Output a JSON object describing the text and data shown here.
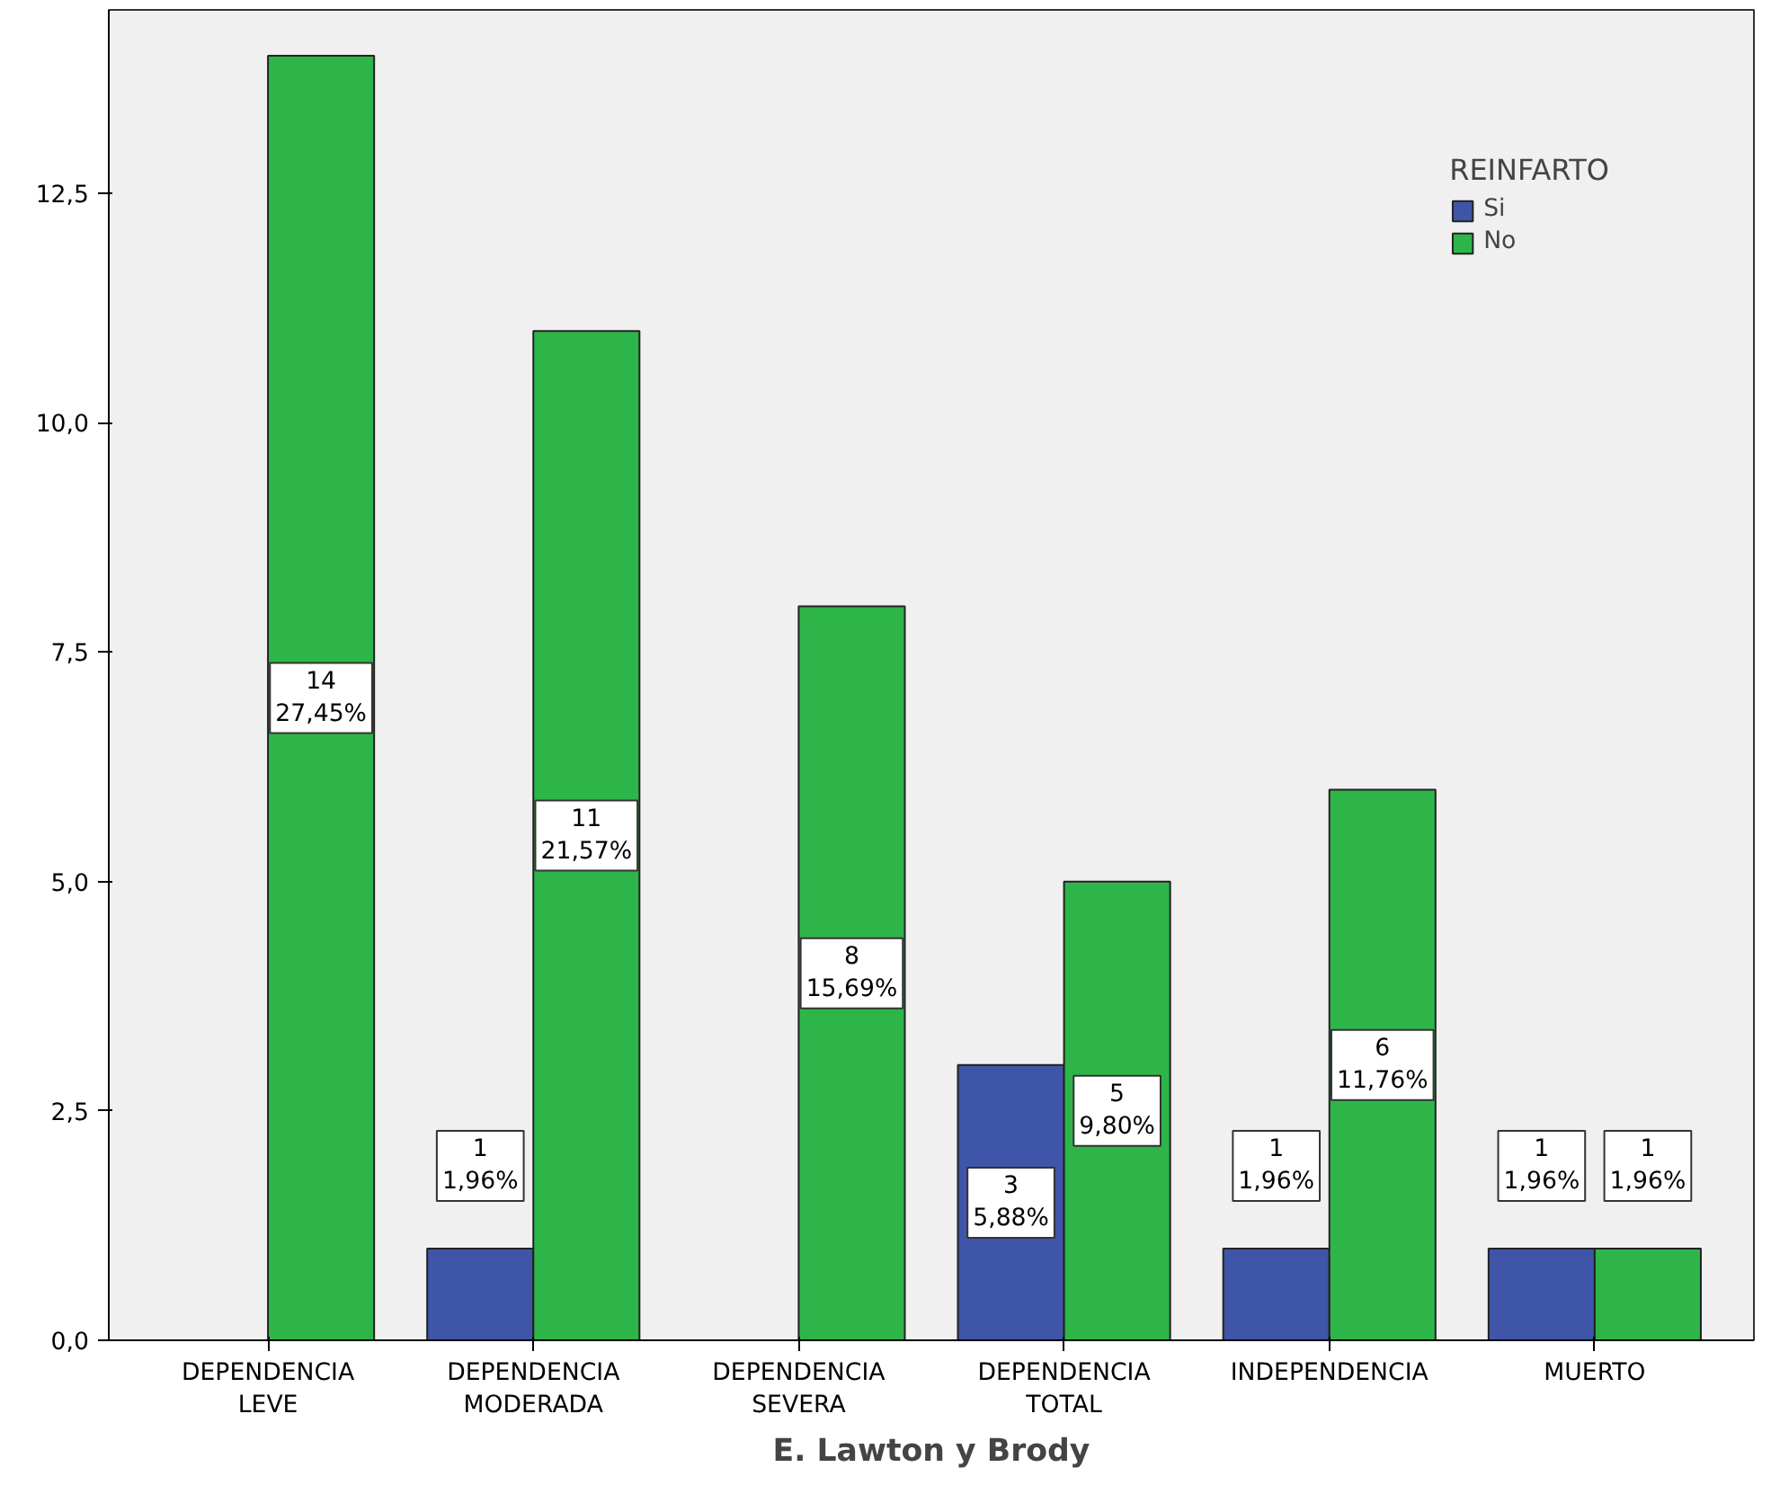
{
  "chart_data": {
    "type": "bar",
    "xlabel": "E. Lawton y Brody",
    "legend_title": "REINFARTO",
    "legend": "top right",
    "categories": [
      "DEPENDENCIA\nLEVE",
      "DEPENDENCIA\nMODERADA",
      "DEPENDENCIA\nSEVERA",
      "DEPENDENCIA\nTOTAL",
      "INDEPENDENCIA",
      "MUERTO"
    ],
    "series": [
      {
        "name": "Si",
        "color": "#3e55a8",
        "values": [
          null,
          1,
          null,
          3,
          1,
          1
        ],
        "value_labels": [
          null,
          "1\n1,96%",
          null,
          "3\n5,88%",
          "1\n1,96%",
          "1\n1,96%"
        ]
      },
      {
        "name": "No",
        "color": "#2eb54a",
        "values": [
          14,
          11,
          8,
          5,
          6,
          1
        ],
        "value_labels": [
          "14\n27,45%",
          "11\n21,57%",
          "8\n15,69%",
          "5\n9,80%",
          "6\n11,76%",
          "1\n1,96%"
        ]
      }
    ],
    "ylim": [
      0,
      14.5
    ],
    "yticks": [
      {
        "value": 0,
        "label": "0,0"
      },
      {
        "value": 2.5,
        "label": "2,5"
      },
      {
        "value": 5,
        "label": "5,0"
      },
      {
        "value": 7.5,
        "label": "7,5"
      },
      {
        "value": 10,
        "label": "10,0"
      },
      {
        "value": 12.5,
        "label": "12,5"
      }
    ],
    "grid": false
  }
}
